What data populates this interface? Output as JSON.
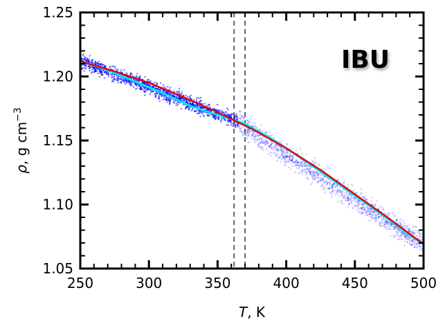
{
  "chart_data": {
    "type": "scatter",
    "annotation": "IBU",
    "xlabel_var": "T",
    "xlabel_unit": ", K",
    "ylabel_var": "ρ",
    "ylabel_unit": ", g cm",
    "ylabel_exp": "−3",
    "xlim": [
      250,
      500
    ],
    "ylim": [
      1.05,
      1.25
    ],
    "x_ticks": [
      250,
      300,
      350,
      400,
      450,
      500
    ],
    "y_ticks": [
      1.05,
      1.1,
      1.15,
      1.2,
      1.25
    ],
    "x_tick_labels": [
      "250",
      "300",
      "350",
      "400",
      "450",
      "500"
    ],
    "y_tick_labels": [
      "1.05",
      "1.10",
      "1.15",
      "1.20",
      "1.25"
    ],
    "grid": false,
    "dashed_vlines": [
      362,
      370
    ],
    "scatter_cloud": {
      "color": "#0000ff",
      "x_range": [
        250,
        500
      ],
      "center_line_low": {
        "x": [
          250,
          362
        ],
        "y": [
          1.212,
          1.166
        ]
      },
      "center_line_high": {
        "x": [
          370,
          500
        ],
        "y": [
          1.16,
          1.069
        ]
      }
    },
    "series": [
      {
        "color": "#00e5ee",
        "x": [
          250,
          270,
          290,
          310,
          330,
          350,
          362,
          370,
          390,
          410,
          430,
          450,
          470,
          490,
          500
        ],
        "y": [
          1.212,
          1.205,
          1.196,
          1.187,
          1.177,
          1.17,
          1.166,
          1.163,
          1.151,
          1.137,
          1.122,
          1.107,
          1.092,
          1.076,
          1.069
        ]
      },
      {
        "color": "#e00000",
        "x": [
          250,
          275,
          300,
          325,
          350,
          375,
          400,
          425,
          450,
          475,
          500
        ],
        "y": [
          1.212,
          1.204,
          1.195,
          1.184,
          1.172,
          1.159,
          1.144,
          1.127,
          1.108,
          1.089,
          1.069
        ]
      }
    ]
  }
}
